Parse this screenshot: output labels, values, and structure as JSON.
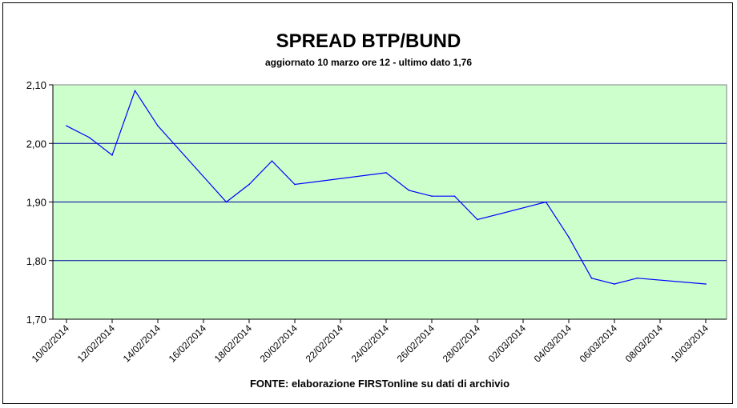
{
  "chart_data": {
    "type": "line",
    "title": "SPREAD BTP/BUND",
    "subtitle": "aggiornato 10 marzo ore 12 - ultimo dato 1,76",
    "source": "FONTE: elaborazione FIRSTonline su dati di archivio",
    "ylim": [
      1.7,
      2.1
    ],
    "yticks": [
      {
        "value": 1.7,
        "label": "1,70"
      },
      {
        "value": 1.8,
        "label": "1,80"
      },
      {
        "value": 1.9,
        "label": "1,90"
      },
      {
        "value": 2.0,
        "label": "2,00"
      },
      {
        "value": 2.1,
        "label": "2,10"
      }
    ],
    "xticks": [
      {
        "date": "2014-02-10",
        "label": "10/02/2014"
      },
      {
        "date": "2014-02-12",
        "label": "12/02/2014"
      },
      {
        "date": "2014-02-14",
        "label": "14/02/2014"
      },
      {
        "date": "2014-02-16",
        "label": "16/02/2014"
      },
      {
        "date": "2014-02-18",
        "label": "18/02/2014"
      },
      {
        "date": "2014-02-20",
        "label": "20/02/2014"
      },
      {
        "date": "2014-02-22",
        "label": "22/02/2014"
      },
      {
        "date": "2014-02-24",
        "label": "24/02/2014"
      },
      {
        "date": "2014-02-26",
        "label": "26/02/2014"
      },
      {
        "date": "2014-02-28",
        "label": "28/02/2014"
      },
      {
        "date": "2014-03-02",
        "label": "02/03/2014"
      },
      {
        "date": "2014-03-04",
        "label": "04/03/2014"
      },
      {
        "date": "2014-03-06",
        "label": "06/03/2014"
      },
      {
        "date": "2014-03-08",
        "label": "08/03/2014"
      },
      {
        "date": "2014-03-10",
        "label": "10/03/2014"
      }
    ],
    "grid": true,
    "colors": {
      "plot_background": "#ccffcc",
      "gridline": "#0000a0",
      "series_line": "#0000ff",
      "axis": "#808080"
    },
    "series": [
      {
        "points": [
          {
            "x": "2014-02-10",
            "y": 2.03
          },
          {
            "x": "2014-02-11",
            "y": 2.01
          },
          {
            "x": "2014-02-12",
            "y": 1.98
          },
          {
            "x": "2014-02-13",
            "y": 2.09
          },
          {
            "x": "2014-02-14",
            "y": 2.03
          },
          {
            "x": "2014-02-17",
            "y": 1.9
          },
          {
            "x": "2014-02-18",
            "y": 1.93
          },
          {
            "x": "2014-02-19",
            "y": 1.97
          },
          {
            "x": "2014-02-20",
            "y": 1.93
          },
          {
            "x": "2014-02-24",
            "y": 1.95
          },
          {
            "x": "2014-02-25",
            "y": 1.92
          },
          {
            "x": "2014-02-26",
            "y": 1.91
          },
          {
            "x": "2014-02-27",
            "y": 1.91
          },
          {
            "x": "2014-02-28",
            "y": 1.87
          },
          {
            "x": "2014-03-03",
            "y": 1.9
          },
          {
            "x": "2014-03-04",
            "y": 1.84
          },
          {
            "x": "2014-03-05",
            "y": 1.77
          },
          {
            "x": "2014-03-06",
            "y": 1.76
          },
          {
            "x": "2014-03-07",
            "y": 1.77
          },
          {
            "x": "2014-03-10",
            "y": 1.76
          }
        ]
      }
    ]
  }
}
